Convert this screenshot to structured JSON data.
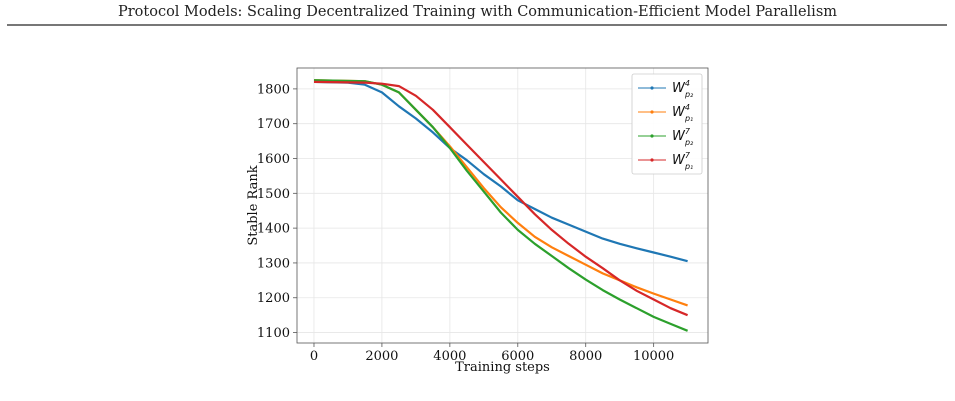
{
  "header": {
    "title": "Protocol Models: Scaling Decentralized Training with Communication-Efficient Model Parallelism"
  },
  "chart_data": {
    "type": "line",
    "title": "",
    "xlabel": "Training steps",
    "ylabel": "Stable Rank",
    "xlim": [
      -500,
      11600
    ],
    "ylim": [
      1070,
      1860
    ],
    "xticks": [
      0,
      2000,
      4000,
      6000,
      8000,
      10000
    ],
    "xtick_labels": [
      "0",
      "2000",
      "4000",
      "6000",
      "8000",
      "10000"
    ],
    "yticks": [
      1100,
      1200,
      1300,
      1400,
      1500,
      1600,
      1700,
      1800
    ],
    "ytick_labels": [
      "1100",
      "1200",
      "1300",
      "1400",
      "1500",
      "1600",
      "1700",
      "1800"
    ],
    "grid": true,
    "legend_position": "top-right",
    "series": [
      {
        "name": "W_{p2}^4",
        "label": {
          "base": "W",
          "sup": "4",
          "sub": "p₂"
        },
        "color": "#1f77b4",
        "x": [
          0,
          1000,
          1500,
          2000,
          2500,
          3000,
          3500,
          4000,
          4500,
          5000,
          5500,
          6000,
          6500,
          7000,
          7500,
          8000,
          8500,
          9000,
          9500,
          10000,
          10500,
          11000
        ],
        "y": [
          1820,
          1818,
          1812,
          1790,
          1750,
          1715,
          1675,
          1630,
          1595,
          1555,
          1520,
          1480,
          1455,
          1430,
          1410,
          1390,
          1370,
          1355,
          1342,
          1330,
          1318,
          1305
        ]
      },
      {
        "name": "W_{p1}^4",
        "label": {
          "base": "W",
          "sup": "4",
          "sub": "p₁"
        },
        "color": "#ff7f0e",
        "x": [
          0,
          1500,
          2000,
          2500,
          3000,
          3500,
          4000,
          4500,
          5000,
          5500,
          6000,
          6500,
          7000,
          7500,
          8000,
          8500,
          9000,
          9500,
          10000,
          10500,
          11000
        ],
        "y": [
          1825,
          1822,
          1812,
          1790,
          1740,
          1690,
          1635,
          1575,
          1515,
          1460,
          1415,
          1375,
          1345,
          1320,
          1295,
          1270,
          1250,
          1230,
          1212,
          1195,
          1178
        ]
      },
      {
        "name": "W_{p2}^7",
        "label": {
          "base": "W",
          "sup": "7",
          "sub": "p₂"
        },
        "color": "#2ca02c",
        "x": [
          0,
          1500,
          2000,
          2500,
          3000,
          3500,
          4000,
          4500,
          5000,
          5500,
          6000,
          6500,
          7000,
          7500,
          8000,
          8500,
          9000,
          9500,
          10000,
          10500,
          11000
        ],
        "y": [
          1825,
          1822,
          1812,
          1790,
          1740,
          1690,
          1630,
          1565,
          1505,
          1445,
          1395,
          1355,
          1320,
          1285,
          1252,
          1222,
          1195,
          1170,
          1145,
          1125,
          1105
        ]
      },
      {
        "name": "W_{p1}^7",
        "label": {
          "base": "W",
          "sup": "7",
          "sub": "p₁"
        },
        "color": "#d62728",
        "x": [
          0,
          1500,
          2000,
          2500,
          3000,
          3500,
          4000,
          4500,
          5000,
          5500,
          6000,
          6500,
          7000,
          7500,
          8000,
          8500,
          9000,
          9500,
          10000,
          10500,
          11000
        ],
        "y": [
          1820,
          1818,
          1815,
          1808,
          1780,
          1740,
          1690,
          1640,
          1590,
          1540,
          1490,
          1440,
          1395,
          1355,
          1318,
          1285,
          1250,
          1220,
          1195,
          1170,
          1150
        ]
      }
    ]
  }
}
